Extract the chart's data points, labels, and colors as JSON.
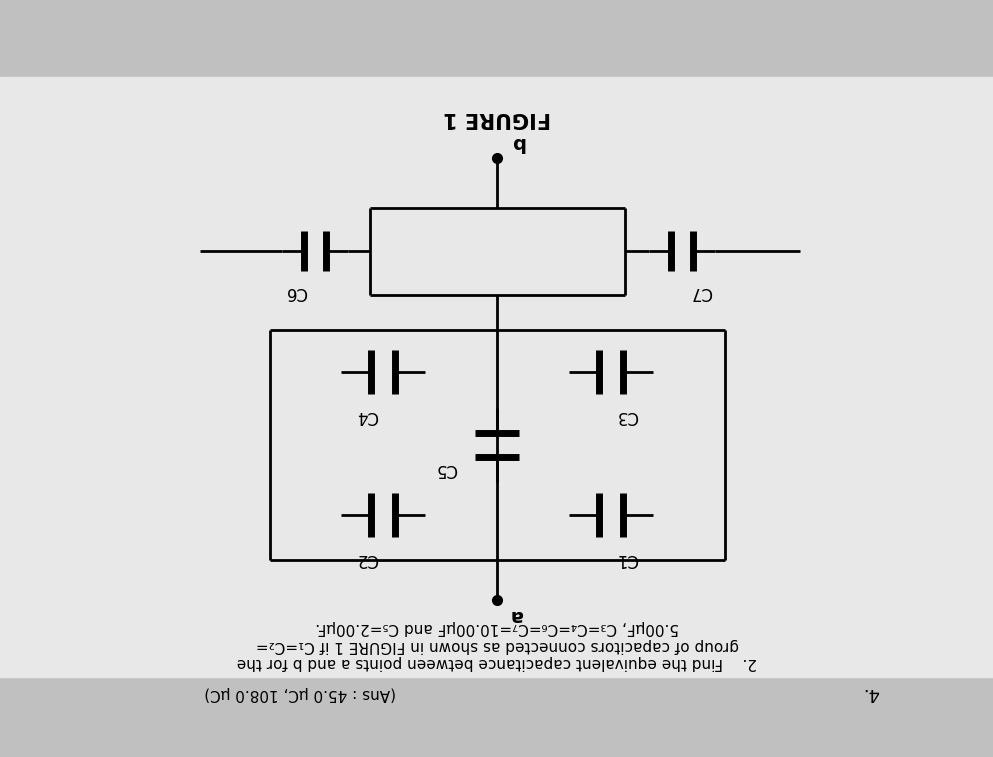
{
  "title": "FIGURE 1",
  "title_fontsize": 14,
  "outer_bg": "#c8c8c8",
  "paper_bg": "#e8e8e8",
  "line_color": "#000000",
  "label_b": "b",
  "label_a": "a",
  "cap_labels": {
    "C1": "C1",
    "C2": "C2",
    "C3": "C3",
    "C4": "C4",
    "C5": "C5",
    "C6": "C6",
    "C7": "C7"
  },
  "prob_num": "2.",
  "prob_text1": "Find the equivalent capacitance between points ",
  "prob_bold_a": "a",
  "prob_text2": " and ",
  "prob_bold_b": "b",
  "prob_text3": " for the",
  "prob_line2": "group of capacitors connected as shown in FIGURE 1 if C",
  "prob_line2b": "1",
  "prob_line2c": "=C",
  "prob_line2d": "2",
  "prob_line2e": "=",
  "prob_line3": "5.00μF, C",
  "prob_line3b": "3",
  "prob_line3c": "=C",
  "prob_line3d": "4",
  "prob_line3e": "=C",
  "prob_line3f": "6",
  "prob_line3g": "=C",
  "prob_line3h": "7",
  "prob_line3i": "=10.00μF and C",
  "prob_line3j": "5",
  "prob_line3k": "=2.00μF.",
  "ans_text": "(Ans : 45.0 μC, 108.0 μC)",
  "item_num": "4.",
  "fig_width": 9.93,
  "fig_height": 7.57,
  "dpi": 100
}
